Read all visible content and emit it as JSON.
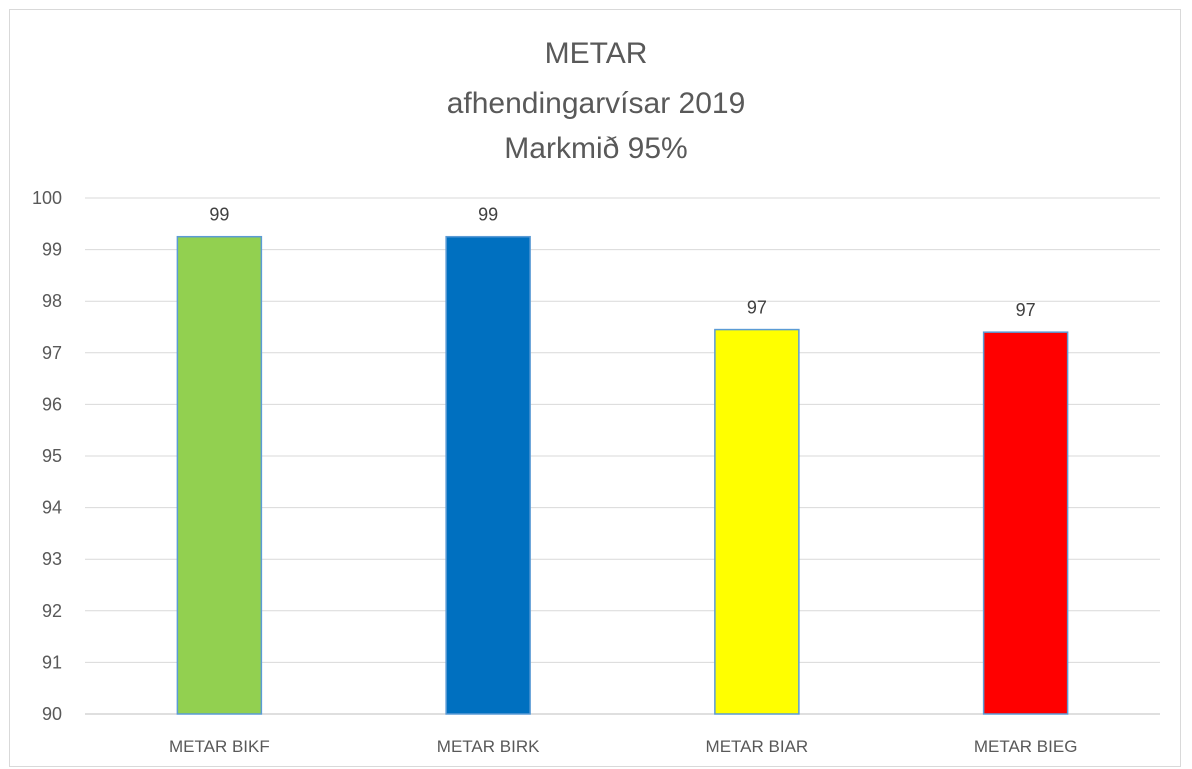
{
  "chart_data": {
    "type": "bar",
    "title": [
      "METAR",
      "afhendingarvísar 2019",
      "Markmið 95%"
    ],
    "categories": [
      "METAR BIKF",
      "METAR BIRK",
      "METAR BIAR",
      "METAR BIEG"
    ],
    "values": [
      99.25,
      99.25,
      97.45,
      97.4
    ],
    "data_labels": [
      "99",
      "99",
      "97",
      "97"
    ],
    "colors": [
      "#92d050",
      "#0070c0",
      "#ffff00",
      "#ff0000"
    ],
    "bar_edge_color": "#5b9bd5",
    "ylim": [
      90,
      100
    ],
    "yticks": [
      "90",
      "91",
      "92",
      "93",
      "94",
      "95",
      "96",
      "97",
      "98",
      "99",
      "100"
    ],
    "grid": true,
    "legend": "none"
  }
}
